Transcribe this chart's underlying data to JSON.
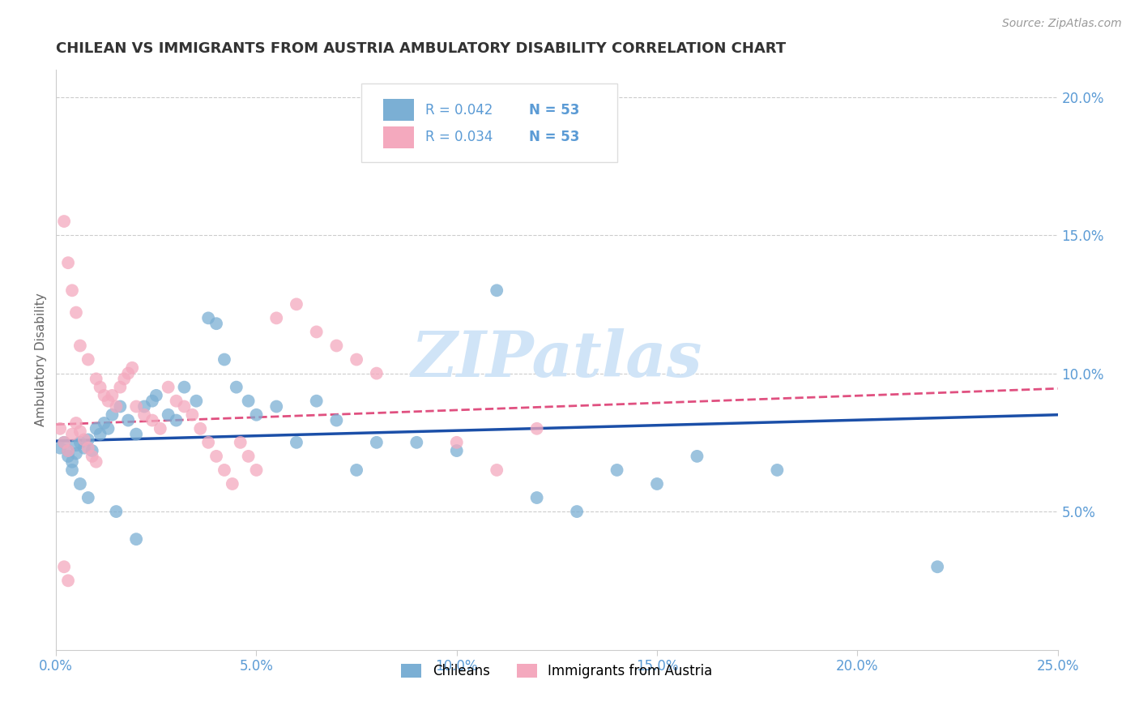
{
  "title": "CHILEAN VS IMMIGRANTS FROM AUSTRIA AMBULATORY DISABILITY CORRELATION CHART",
  "source": "Source: ZipAtlas.com",
  "ylabel": "Ambulatory Disability",
  "xlim": [
    0.0,
    0.25
  ],
  "ylim": [
    0.0,
    0.21
  ],
  "xticks": [
    0.0,
    0.05,
    0.1,
    0.15,
    0.2,
    0.25
  ],
  "yticks": [
    0.05,
    0.1,
    0.15,
    0.2
  ],
  "ytick_labels": [
    "5.0%",
    "10.0%",
    "15.0%",
    "20.0%"
  ],
  "xtick_labels": [
    "0.0%",
    "5.0%",
    "10.0%",
    "15.0%",
    "20.0%",
    "25.0%"
  ],
  "legend_r_chilean": "R = 0.042",
  "legend_n_chilean": "N = 53",
  "legend_r_austria": "R = 0.034",
  "legend_n_austria": "N = 53",
  "watermark": "ZIPatlas",
  "chilean_x": [
    0.001,
    0.002,
    0.003,
    0.003,
    0.004,
    0.005,
    0.005,
    0.006,
    0.007,
    0.008,
    0.009,
    0.01,
    0.011,
    0.012,
    0.013,
    0.014,
    0.016,
    0.018,
    0.02,
    0.022,
    0.024,
    0.025,
    0.028,
    0.03,
    0.032,
    0.035,
    0.038,
    0.04,
    0.042,
    0.045,
    0.048,
    0.05,
    0.055,
    0.06,
    0.065,
    0.07,
    0.075,
    0.08,
    0.09,
    0.1,
    0.11,
    0.12,
    0.13,
    0.14,
    0.15,
    0.16,
    0.18,
    0.22,
    0.004,
    0.006,
    0.008,
    0.015,
    0.02
  ],
  "chilean_y": [
    0.073,
    0.075,
    0.072,
    0.07,
    0.068,
    0.074,
    0.071,
    0.075,
    0.073,
    0.076,
    0.072,
    0.08,
    0.078,
    0.082,
    0.08,
    0.085,
    0.088,
    0.083,
    0.078,
    0.088,
    0.09,
    0.092,
    0.085,
    0.083,
    0.095,
    0.09,
    0.12,
    0.118,
    0.105,
    0.095,
    0.09,
    0.085,
    0.088,
    0.075,
    0.09,
    0.083,
    0.065,
    0.075,
    0.075,
    0.072,
    0.13,
    0.055,
    0.05,
    0.065,
    0.06,
    0.07,
    0.065,
    0.03,
    0.065,
    0.06,
    0.055,
    0.05,
    0.04
  ],
  "austria_x": [
    0.001,
    0.002,
    0.002,
    0.003,
    0.003,
    0.004,
    0.004,
    0.005,
    0.005,
    0.006,
    0.006,
    0.007,
    0.008,
    0.008,
    0.009,
    0.01,
    0.01,
    0.011,
    0.012,
    0.013,
    0.014,
    0.015,
    0.016,
    0.017,
    0.018,
    0.019,
    0.02,
    0.022,
    0.024,
    0.026,
    0.028,
    0.03,
    0.032,
    0.034,
    0.036,
    0.038,
    0.04,
    0.042,
    0.044,
    0.046,
    0.048,
    0.05,
    0.055,
    0.06,
    0.065,
    0.07,
    0.075,
    0.08,
    0.1,
    0.11,
    0.12,
    0.002,
    0.003
  ],
  "austria_y": [
    0.08,
    0.075,
    0.155,
    0.072,
    0.14,
    0.078,
    0.13,
    0.082,
    0.122,
    0.079,
    0.11,
    0.076,
    0.073,
    0.105,
    0.07,
    0.068,
    0.098,
    0.095,
    0.092,
    0.09,
    0.092,
    0.088,
    0.095,
    0.098,
    0.1,
    0.102,
    0.088,
    0.085,
    0.083,
    0.08,
    0.095,
    0.09,
    0.088,
    0.085,
    0.08,
    0.075,
    0.07,
    0.065,
    0.06,
    0.075,
    0.07,
    0.065,
    0.12,
    0.125,
    0.115,
    0.11,
    0.105,
    0.1,
    0.075,
    0.065,
    0.08,
    0.03,
    0.025
  ],
  "chilean_color": "#7BAFD4",
  "austria_color": "#F4A9BE",
  "chilean_line_color": "#1B4FA8",
  "austria_line_color": "#E05080",
  "bg_color": "#FFFFFF",
  "grid_color": "#CCCCCC",
  "title_color": "#333333",
  "axis_color": "#5B9BD5",
  "watermark_color": "#D0E4F7"
}
